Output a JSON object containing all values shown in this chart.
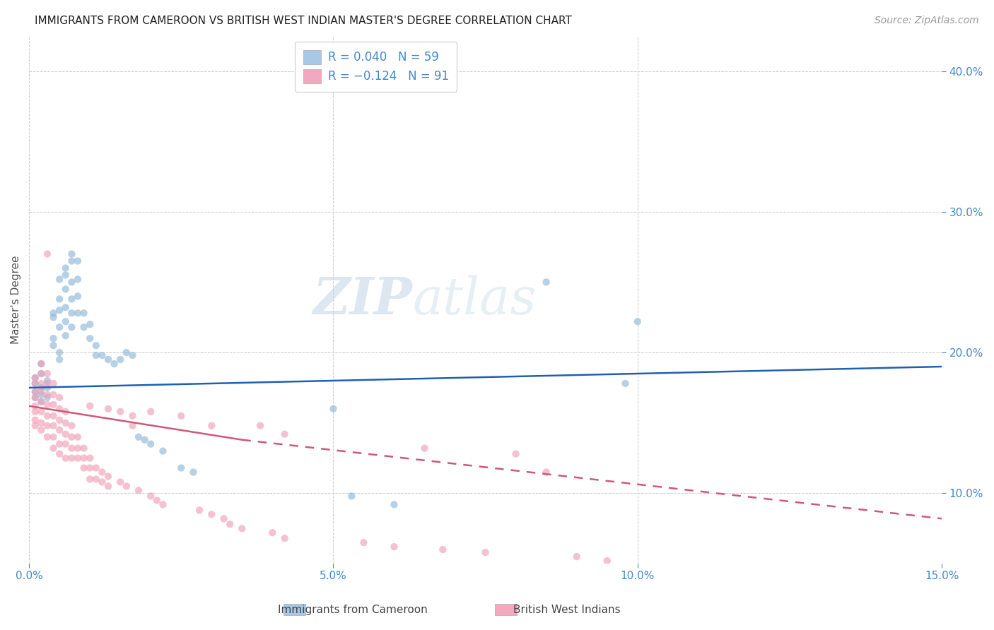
{
  "title": "IMMIGRANTS FROM CAMEROON VS BRITISH WEST INDIAN MASTER'S DEGREE CORRELATION CHART",
  "source": "Source: ZipAtlas.com",
  "ylabel": "Master's Degree",
  "xlim": [
    0.0,
    0.15
  ],
  "ylim": [
    0.05,
    0.425
  ],
  "watermark": "ZIPatlas",
  "blue_scatter": [
    [
      0.001,
      0.178
    ],
    [
      0.001,
      0.182
    ],
    [
      0.001,
      0.172
    ],
    [
      0.001,
      0.168
    ],
    [
      0.002,
      0.185
    ],
    [
      0.002,
      0.175
    ],
    [
      0.002,
      0.17
    ],
    [
      0.002,
      0.165
    ],
    [
      0.002,
      0.192
    ],
    [
      0.003,
      0.18
    ],
    [
      0.003,
      0.175
    ],
    [
      0.003,
      0.168
    ],
    [
      0.004,
      0.225
    ],
    [
      0.004,
      0.228
    ],
    [
      0.004,
      0.21
    ],
    [
      0.004,
      0.205
    ],
    [
      0.005,
      0.238
    ],
    [
      0.005,
      0.252
    ],
    [
      0.005,
      0.23
    ],
    [
      0.005,
      0.218
    ],
    [
      0.005,
      0.2
    ],
    [
      0.005,
      0.195
    ],
    [
      0.006,
      0.26
    ],
    [
      0.006,
      0.255
    ],
    [
      0.006,
      0.245
    ],
    [
      0.006,
      0.232
    ],
    [
      0.006,
      0.222
    ],
    [
      0.006,
      0.212
    ],
    [
      0.007,
      0.27
    ],
    [
      0.007,
      0.265
    ],
    [
      0.007,
      0.25
    ],
    [
      0.007,
      0.238
    ],
    [
      0.007,
      0.228
    ],
    [
      0.007,
      0.218
    ],
    [
      0.008,
      0.265
    ],
    [
      0.008,
      0.252
    ],
    [
      0.008,
      0.24
    ],
    [
      0.008,
      0.228
    ],
    [
      0.009,
      0.228
    ],
    [
      0.009,
      0.218
    ],
    [
      0.01,
      0.22
    ],
    [
      0.01,
      0.21
    ],
    [
      0.011,
      0.205
    ],
    [
      0.011,
      0.198
    ],
    [
      0.012,
      0.198
    ],
    [
      0.013,
      0.195
    ],
    [
      0.014,
      0.192
    ],
    [
      0.015,
      0.195
    ],
    [
      0.016,
      0.2
    ],
    [
      0.017,
      0.198
    ],
    [
      0.018,
      0.14
    ],
    [
      0.019,
      0.138
    ],
    [
      0.02,
      0.135
    ],
    [
      0.022,
      0.13
    ],
    [
      0.025,
      0.118
    ],
    [
      0.027,
      0.115
    ],
    [
      0.05,
      0.16
    ],
    [
      0.053,
      0.098
    ],
    [
      0.06,
      0.092
    ],
    [
      0.085,
      0.25
    ],
    [
      0.098,
      0.178
    ],
    [
      0.1,
      0.222
    ]
  ],
  "pink_scatter": [
    [
      0.001,
      0.182
    ],
    [
      0.001,
      0.178
    ],
    [
      0.001,
      0.172
    ],
    [
      0.001,
      0.168
    ],
    [
      0.001,
      0.162
    ],
    [
      0.001,
      0.158
    ],
    [
      0.001,
      0.152
    ],
    [
      0.001,
      0.148
    ],
    [
      0.002,
      0.192
    ],
    [
      0.002,
      0.185
    ],
    [
      0.002,
      0.178
    ],
    [
      0.002,
      0.172
    ],
    [
      0.002,
      0.165
    ],
    [
      0.002,
      0.158
    ],
    [
      0.002,
      0.15
    ],
    [
      0.002,
      0.145
    ],
    [
      0.003,
      0.27
    ],
    [
      0.003,
      0.185
    ],
    [
      0.003,
      0.178
    ],
    [
      0.003,
      0.17
    ],
    [
      0.003,
      0.163
    ],
    [
      0.003,
      0.155
    ],
    [
      0.003,
      0.148
    ],
    [
      0.003,
      0.14
    ],
    [
      0.004,
      0.178
    ],
    [
      0.004,
      0.17
    ],
    [
      0.004,
      0.163
    ],
    [
      0.004,
      0.155
    ],
    [
      0.004,
      0.148
    ],
    [
      0.004,
      0.14
    ],
    [
      0.004,
      0.132
    ],
    [
      0.005,
      0.168
    ],
    [
      0.005,
      0.16
    ],
    [
      0.005,
      0.152
    ],
    [
      0.005,
      0.145
    ],
    [
      0.005,
      0.135
    ],
    [
      0.005,
      0.128
    ],
    [
      0.006,
      0.158
    ],
    [
      0.006,
      0.15
    ],
    [
      0.006,
      0.142
    ],
    [
      0.006,
      0.135
    ],
    [
      0.006,
      0.125
    ],
    [
      0.007,
      0.148
    ],
    [
      0.007,
      0.14
    ],
    [
      0.007,
      0.132
    ],
    [
      0.007,
      0.125
    ],
    [
      0.008,
      0.14
    ],
    [
      0.008,
      0.132
    ],
    [
      0.008,
      0.125
    ],
    [
      0.009,
      0.132
    ],
    [
      0.009,
      0.125
    ],
    [
      0.009,
      0.118
    ],
    [
      0.01,
      0.162
    ],
    [
      0.01,
      0.125
    ],
    [
      0.01,
      0.118
    ],
    [
      0.01,
      0.11
    ],
    [
      0.011,
      0.118
    ],
    [
      0.011,
      0.11
    ],
    [
      0.012,
      0.115
    ],
    [
      0.012,
      0.108
    ],
    [
      0.013,
      0.16
    ],
    [
      0.013,
      0.112
    ],
    [
      0.013,
      0.105
    ],
    [
      0.015,
      0.158
    ],
    [
      0.015,
      0.108
    ],
    [
      0.016,
      0.105
    ],
    [
      0.017,
      0.155
    ],
    [
      0.017,
      0.148
    ],
    [
      0.018,
      0.102
    ],
    [
      0.02,
      0.158
    ],
    [
      0.02,
      0.098
    ],
    [
      0.021,
      0.095
    ],
    [
      0.022,
      0.092
    ],
    [
      0.025,
      0.155
    ],
    [
      0.028,
      0.088
    ],
    [
      0.03,
      0.148
    ],
    [
      0.03,
      0.085
    ],
    [
      0.032,
      0.082
    ],
    [
      0.033,
      0.078
    ],
    [
      0.035,
      0.075
    ],
    [
      0.038,
      0.148
    ],
    [
      0.04,
      0.072
    ],
    [
      0.042,
      0.142
    ],
    [
      0.042,
      0.068
    ],
    [
      0.055,
      0.065
    ],
    [
      0.06,
      0.062
    ],
    [
      0.065,
      0.132
    ],
    [
      0.068,
      0.06
    ],
    [
      0.075,
      0.058
    ],
    [
      0.08,
      0.128
    ],
    [
      0.085,
      0.115
    ],
    [
      0.09,
      0.055
    ],
    [
      0.095,
      0.052
    ]
  ],
  "blue_line": {
    "x": [
      0.0,
      0.15
    ],
    "y": [
      0.175,
      0.19
    ]
  },
  "pink_line_solid": {
    "x": [
      0.0,
      0.035
    ],
    "y": [
      0.162,
      0.138
    ]
  },
  "pink_line_dashed": {
    "x": [
      0.035,
      0.15
    ],
    "y": [
      0.138,
      0.082
    ]
  },
  "scatter_size": 55,
  "scatter_alpha": 0.65,
  "blue_color": "#90b8d8",
  "pink_color": "#f0a0b8",
  "blue_line_color": "#2060b0",
  "pink_line_color": "#d05878",
  "grid_color": "#cccccc",
  "background_color": "#ffffff",
  "title_fontsize": 11,
  "source_fontsize": 10,
  "tick_color": "#4488cc",
  "tick_fontsize": 11,
  "ylabel_fontsize": 11,
  "legend_text_color": "#4488cc",
  "legend_blue_color": "#a8c8e8",
  "legend_pink_color": "#f4a8c0"
}
